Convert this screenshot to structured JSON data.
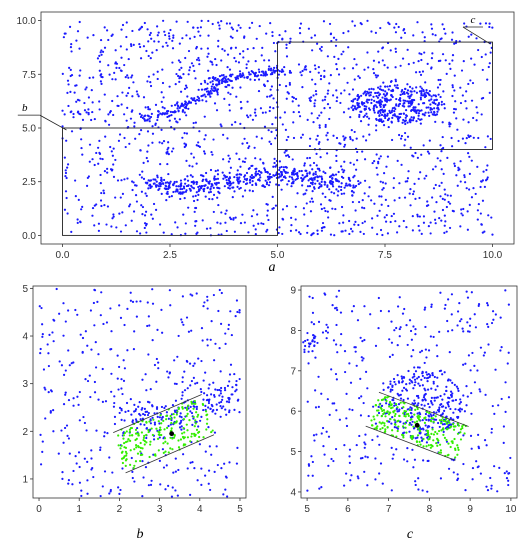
{
  "chart_data": [
    {
      "panel": "a",
      "type": "scatter",
      "caption": "a",
      "xlim": [
        -0.5,
        10.5
      ],
      "ylim": [
        -0.4,
        10.4
      ],
      "xticks": [
        "0.0",
        "2.5",
        "5.0",
        "7.5",
        "10.0"
      ],
      "yticks": [
        "0.0",
        "2.5",
        "5.0",
        "7.5",
        "10.0"
      ],
      "point_color": "#1a1aff",
      "background_points": {
        "count": 1500,
        "x_range": [
          0,
          10
        ],
        "y_range": [
          0,
          10
        ]
      },
      "clusters": [
        {
          "shape": "ellipse",
          "center": [
            7.8,
            6.1
          ],
          "radii": [
            1.1,
            0.9
          ],
          "count": 330
        },
        {
          "shape": "band",
          "path": [
            [
              1.8,
              5.4
            ],
            [
              2.6,
              5.8
            ],
            [
              3.3,
              6.5
            ],
            [
              3.8,
              7.4
            ],
            [
              4.5,
              7.5
            ],
            [
              5.2,
              7.7
            ]
          ],
          "width": 0.18,
          "count": 230
        },
        {
          "shape": "band",
          "path": [
            [
              1.9,
              2.4
            ],
            [
              3.0,
              2.2
            ],
            [
              4.0,
              2.6
            ],
            [
              5.0,
              2.9
            ],
            [
              6.0,
              2.6
            ],
            [
              6.8,
              2.2
            ]
          ],
          "width": 0.35,
          "count": 420
        }
      ],
      "regions": [
        {
          "name": "b",
          "x": [
            0,
            5
          ],
          "y": [
            0,
            5
          ],
          "label_anchor": [
            -0.9,
            5.6
          ]
        },
        {
          "name": "c",
          "x": [
            5,
            10
          ],
          "y": [
            4,
            9
          ],
          "label_anchor": [
            9.5,
            9.7
          ]
        }
      ]
    },
    {
      "panel": "b",
      "type": "scatter",
      "caption": "b",
      "xlim": [
        -0.15,
        5.15
      ],
      "ylim": [
        0.6,
        5.05
      ],
      "xticks": [
        "0",
        "1",
        "2",
        "3",
        "4",
        "5"
      ],
      "yticks": [
        "1",
        "2",
        "3",
        "4",
        "5"
      ],
      "point_color": "#1a1aff",
      "highlight_color": "#33ee00",
      "center_point": [
        3.3,
        1.95
      ],
      "highlight_band": {
        "start": [
          2.0,
          1.55
        ],
        "end": [
          4.2,
          2.35
        ],
        "half_width": 0.45,
        "count": 200
      },
      "clusters": [
        {
          "shape": "band",
          "path": [
            [
              1.9,
              2.4
            ],
            [
              3.0,
              2.2
            ],
            [
              4.0,
              2.6
            ],
            [
              4.9,
              2.9
            ]
          ],
          "width": 0.35,
          "count": 170
        }
      ],
      "background_points": {
        "count": 380,
        "x_range": [
          0,
          5
        ],
        "y_range": [
          0.6,
          5
        ]
      }
    },
    {
      "panel": "c",
      "type": "scatter",
      "caption": "c",
      "xlim": [
        4.85,
        10.15
      ],
      "ylim": [
        3.85,
        9.1
      ],
      "xticks": [
        "5",
        "6",
        "7",
        "8",
        "9",
        "10"
      ],
      "yticks": [
        "4",
        "5",
        "6",
        "7",
        "8",
        "9"
      ],
      "point_color": "#1a1aff",
      "highlight_color": "#33ee00",
      "center_point": [
        7.7,
        5.65
      ],
      "highlight_band": {
        "start": [
          6.6,
          6.05
        ],
        "end": [
          8.8,
          5.2
        ],
        "half_width": 0.45,
        "count": 230
      },
      "clusters": [
        {
          "shape": "ellipse",
          "center": [
            7.8,
            6.2
          ],
          "radii": [
            1.0,
            0.9
          ],
          "count": 260
        },
        {
          "shape": "band",
          "path": [
            [
              5.0,
              7.6
            ],
            [
              5.15,
              7.75
            ]
          ],
          "width": 0.2,
          "count": 25
        }
      ],
      "background_points": {
        "count": 380,
        "x_range": [
          5,
          10
        ],
        "y_range": [
          4,
          9
        ]
      }
    }
  ]
}
